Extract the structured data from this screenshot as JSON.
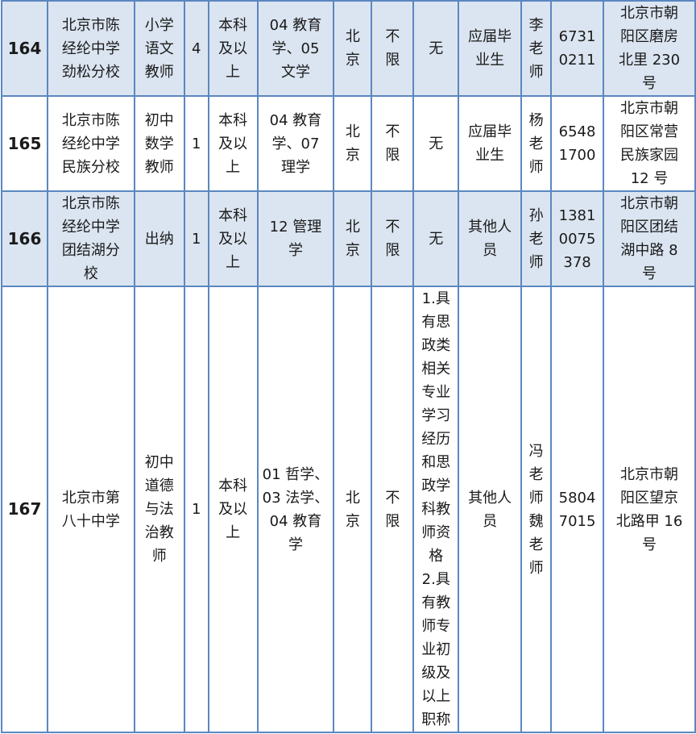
{
  "table": {
    "rows": [
      {
        "shaded": true,
        "cells": [
          "164",
          "北京市陈\n经纶中学\n劲松分校",
          "小学\n语文\n教师",
          "4",
          "本科\n及以\n上",
          "04 教育\n学、05\n文学",
          "北\n京",
          "不\n限",
          "无",
          "应届毕\n业生",
          "李\n老\n师",
          "6731\n0211",
          "北京市朝\n阳区磨房\n北里 230\n号"
        ]
      },
      {
        "shaded": false,
        "cells": [
          "165",
          "北京市陈\n经纶中学\n民族分校",
          "初中\n数学\n教师",
          "1",
          "本科\n及以\n上",
          "04 教育\n学、07\n理学",
          "北\n京",
          "不\n限",
          "无",
          "应届毕\n业生",
          "杨\n老\n师",
          "6548\n1700",
          "北京市朝\n阳区常营\n民族家园\n12 号"
        ]
      },
      {
        "shaded": true,
        "cells": [
          "166",
          "北京市陈\n经纶中学\n团结湖分\n校",
          "出纳",
          "1",
          "本科\n及以\n上",
          "12 管理\n学",
          "北\n京",
          "不\n限",
          "无",
          "其他人\n员",
          "孙\n老\n师",
          "1381\n0075\n378",
          "北京市朝\n阳区团结\n湖中路 8\n号"
        ]
      },
      {
        "shaded": false,
        "cells": [
          "167",
          "北京市第\n八十中学",
          "初中\n道德\n与法\n治教\n师",
          "1",
          "本科\n及以\n上",
          "01 哲学、\n03 法学、\n04 教育\n学",
          "北\n京",
          "不\n限",
          "1.具\n有思\n政类\n相关\n专业\n学习\n经历\n和思\n政学\n科教\n师资\n格\n2.具\n有教\n师专\n业初\n级及\n以上\n职称",
          "其他人\n员",
          "冯\n老\n师\n魏\n老\n师",
          "5804\n7015",
          "北京市朝\n阳区望京\n北路甲 16\n号"
        ]
      }
    ]
  },
  "colors": {
    "shaded_row": "#dbe5f1",
    "border": "#5b87c0"
  }
}
